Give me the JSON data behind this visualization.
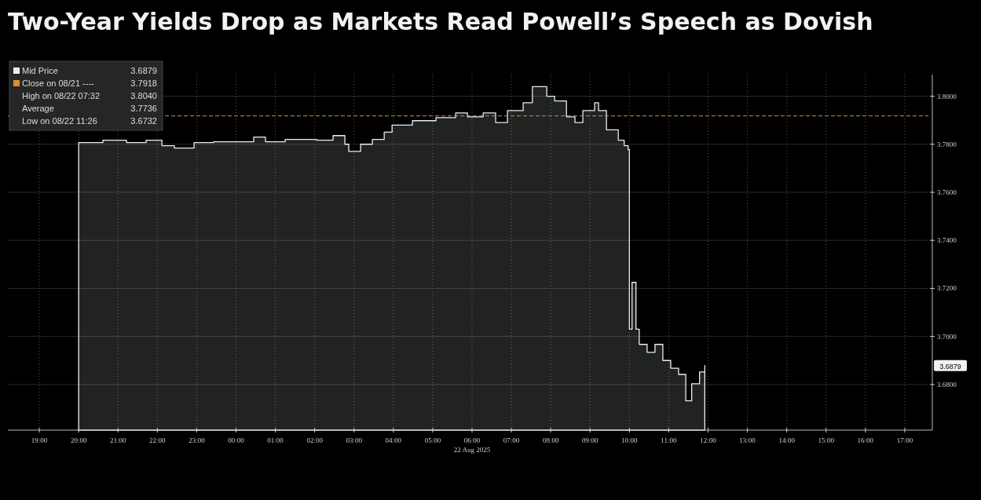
{
  "chart_data": {
    "type": "area",
    "title": "Two-Year Yields Drop as Markets Read Powell’s Speech as Dovish",
    "series": [
      {
        "name": "Mid Price",
        "color": "#e8eef4",
        "x": [
          "2025-08-21T20:00",
          "2025-08-21T20:37",
          "2025-08-21T21:13",
          "2025-08-21T21:43",
          "2025-08-21T22:07",
          "2025-08-21T22:26",
          "2025-08-21T22:56",
          "2025-08-21T23:26",
          "2025-08-22T00:27",
          "2025-08-22T00:45",
          "2025-08-22T01:15",
          "2025-08-22T02:03",
          "2025-08-22T02:28",
          "2025-08-22T02:46",
          "2025-08-22T02:52",
          "2025-08-22T03:10",
          "2025-08-22T03:28",
          "2025-08-22T03:46",
          "2025-08-22T03:58",
          "2025-08-22T04:29",
          "2025-08-22T05:05",
          "2025-08-22T05:35",
          "2025-08-22T05:53",
          "2025-08-22T06:17",
          "2025-08-22T06:36",
          "2025-08-22T06:54",
          "2025-08-22T07:18",
          "2025-08-22T07:32",
          "2025-08-22T07:54",
          "2025-08-22T08:06",
          "2025-08-22T08:24",
          "2025-08-22T08:37",
          "2025-08-22T08:49",
          "2025-08-22T09:07",
          "2025-08-22T09:13",
          "2025-08-22T09:25",
          "2025-08-22T09:43",
          "2025-08-22T09:52",
          "2025-08-22T09:58",
          "2025-08-22T10:00",
          "2025-08-22T10:04",
          "2025-08-22T10:10",
          "2025-08-22T10:15",
          "2025-08-22T10:27",
          "2025-08-22T10:39",
          "2025-08-22T10:51",
          "2025-08-22T11:03",
          "2025-08-22T11:15",
          "2025-08-22T11:26",
          "2025-08-22T11:35",
          "2025-08-22T11:47",
          "2025-08-22T11:55"
        ],
        "values": [
          3.7807,
          3.7817,
          3.7807,
          3.7817,
          3.7794,
          3.7784,
          3.7807,
          3.781,
          3.783,
          3.781,
          3.782,
          3.7817,
          3.7836,
          3.78,
          3.777,
          3.78,
          3.782,
          3.785,
          3.788,
          3.7898,
          3.7911,
          3.793,
          3.7914,
          3.793,
          3.789,
          3.794,
          3.7973,
          3.804,
          3.8,
          3.798,
          3.7914,
          3.789,
          3.794,
          3.7973,
          3.794,
          3.786,
          3.7817,
          3.7794,
          3.7778,
          3.703,
          3.7225,
          3.703,
          3.6967,
          3.6934,
          3.6967,
          3.69,
          3.6868,
          3.6842,
          3.6732,
          3.6803,
          3.6852,
          3.6879
        ]
      }
    ],
    "xlim": [
      "2025-08-21T18:12",
      "2025-08-22T17:36"
    ],
    "xticks": [
      {
        "value": "2025-08-21T19:00",
        "label": "19:00"
      },
      {
        "value": "2025-08-21T20:00",
        "label": "20:00"
      },
      {
        "value": "2025-08-21T21:00",
        "label": "21:00"
      },
      {
        "value": "2025-08-21T22:00",
        "label": "22:00"
      },
      {
        "value": "2025-08-21T23:00",
        "label": "23:00"
      },
      {
        "value": "2025-08-22T00:00",
        "label": "00:00"
      },
      {
        "value": "2025-08-22T01:00",
        "label": "01:00"
      },
      {
        "value": "2025-08-22T02:00",
        "label": "02:00"
      },
      {
        "value": "2025-08-22T03:00",
        "label": "03:00"
      },
      {
        "value": "2025-08-22T04:00",
        "label": "04:00"
      },
      {
        "value": "2025-08-22T05:00",
        "label": "05:00"
      },
      {
        "value": "2025-08-22T06:00",
        "label": "06:00"
      },
      {
        "value": "2025-08-22T07:00",
        "label": "07:00"
      },
      {
        "value": "2025-08-22T08:00",
        "label": "08:00"
      },
      {
        "value": "2025-08-22T09:00",
        "label": "09:00"
      },
      {
        "value": "2025-08-22T10:00",
        "label": "10:00"
      },
      {
        "value": "2025-08-22T11:00",
        "label": "11:00"
      },
      {
        "value": "2025-08-22T12:00",
        "label": "12:00"
      },
      {
        "value": "2025-08-22T13:00",
        "label": "13:00"
      },
      {
        "value": "2025-08-22T14:00",
        "label": "14:00"
      },
      {
        "value": "2025-08-22T15:00",
        "label": "15:00"
      },
      {
        "value": "2025-08-22T16:00",
        "label": "16:00"
      },
      {
        "value": "2025-08-22T17:00",
        "label": "17:00"
      }
    ],
    "ylim": [
      3.661,
      3.809
    ],
    "yticks": [
      {
        "value": 3.68,
        "label": "3.6800"
      },
      {
        "value": 3.7,
        "label": "3.7000"
      },
      {
        "value": 3.72,
        "label": "3.7200"
      },
      {
        "value": 3.74,
        "label": "3.7400"
      },
      {
        "value": 3.76,
        "label": "3.7600"
      },
      {
        "value": 3.78,
        "label": "3.7800"
      },
      {
        "value": 3.8,
        "label": "3.8000"
      }
    ],
    "ref_lines": [
      {
        "axis": "y",
        "value": 3.7918,
        "label": "Close on 08/21 ---- 3.7918",
        "color": "#e08a2e",
        "line_style": "dashed"
      }
    ],
    "annotations": [
      "3.6879",
      "High on 08/22 07:32 3.8040",
      "Average 3.7736",
      "Low on 08/22 11:26 3.6732",
      "22 Aug 2025"
    ],
    "grid": true,
    "legend": "top left"
  }
}
